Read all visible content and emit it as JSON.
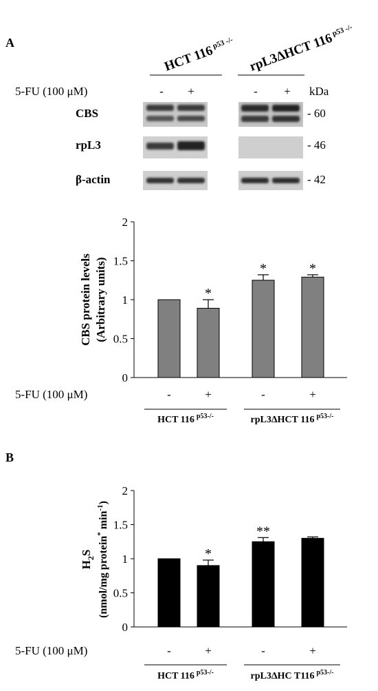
{
  "panel_a": {
    "label": "A",
    "blot": {
      "group_labels": [
        {
          "name": "HCT 116",
          "sup": "p53 -/-"
        },
        {
          "name": "rpL3ΔHCT 116",
          "sup": "p53 -/-"
        }
      ],
      "treatment_label": "5-FU (100 μM)",
      "lane_signs": [
        "-",
        "+",
        "-",
        "+"
      ],
      "kda_label": "kDa",
      "rows": [
        {
          "name": "CBS",
          "kda": "- 60"
        },
        {
          "name": "rpL3",
          "kda": "- 46"
        },
        {
          "name": "β-actin",
          "kda": "- 42"
        }
      ]
    }
  },
  "panel_b": {
    "label": "B"
  },
  "chart_data": [
    {
      "type": "bar",
      "categories": [
        "HCT 116 p53-/- −",
        "HCT 116 p53-/- +",
        "rpL3ΔHCT 116 p53-/- −",
        "rpL3ΔHCT 116 p53-/- +"
      ],
      "values": [
        1.0,
        0.89,
        1.25,
        1.29
      ],
      "errors": [
        0,
        0.11,
        0.07,
        0.03
      ],
      "significance": [
        "",
        "*",
        "*",
        "*"
      ],
      "ylabel_line1": "CBS protein levels",
      "ylabel_line2": "(Arbitrary units)",
      "ylim": [
        0,
        2
      ],
      "yticks": [
        "0",
        "0.5",
        "1",
        "1.5",
        "2"
      ],
      "treatment_label": "5-FU (100 μM)",
      "treatment_signs": [
        "-",
        "+",
        "-",
        "+"
      ],
      "groups": [
        {
          "name": "HCT 116",
          "sup": "p53-/-"
        },
        {
          "name": "rpL3ΔHCT 116",
          "sup": "p53-/-"
        }
      ],
      "bar_color": "#808080"
    },
    {
      "type": "bar",
      "categories": [
        "HCT 116 p53-/- −",
        "HCT 116 p53-/- +",
        "rpL3ΔHC T116 p53-/- −",
        "rpL3ΔHC T116 p53-/- +"
      ],
      "values": [
        1.0,
        0.9,
        1.25,
        1.3
      ],
      "errors": [
        0,
        0.08,
        0.06,
        0.02
      ],
      "significance": [
        "",
        "*",
        "**",
        ""
      ],
      "ylabel_line1": "H2S",
      "ylabel_line2": "(nmol/mg protein* min-1)",
      "ylim": [
        0,
        2
      ],
      "yticks": [
        "0",
        "0.5",
        "1",
        "1.5",
        "2"
      ],
      "treatment_label": "5-FU (100 μM)",
      "treatment_signs": [
        "-",
        "+",
        "-",
        "+"
      ],
      "groups": [
        {
          "name": "HCT 116",
          "sup": "p53-/-"
        },
        {
          "name": "rpL3ΔHC T116",
          "sup": "p53-/-"
        }
      ],
      "bar_color": "#000000"
    }
  ]
}
